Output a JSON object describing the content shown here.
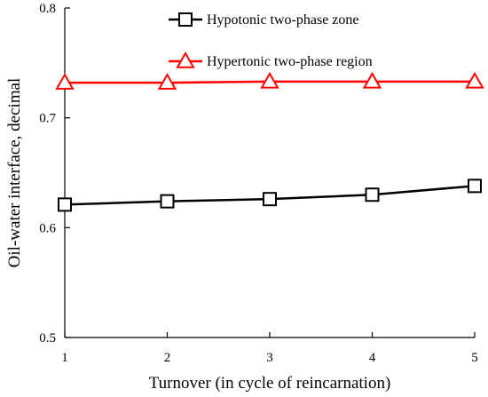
{
  "chart_data": {
    "type": "line",
    "title": "",
    "xlabel": "Turnover (in cycle of reincarnation)",
    "ylabel": "Oil-water interface, decimal",
    "x": [
      1,
      2,
      3,
      4,
      5
    ],
    "xlim": [
      1,
      5
    ],
    "ylim": [
      0.5,
      0.8
    ],
    "xticks": [
      "1",
      "2",
      "3",
      "4",
      "5"
    ],
    "yticks": [
      "0.5",
      "0.6",
      "0.7",
      "0.8"
    ],
    "grid": false,
    "legend_position": "top-center",
    "series": [
      {
        "name": "Hypotonic two-phase zone",
        "marker": "square",
        "color": "#000000",
        "values": [
          0.621,
          0.624,
          0.626,
          0.63,
          0.638
        ]
      },
      {
        "name": "Hypertonic two-phase region",
        "marker": "triangle",
        "color": "#ff0000",
        "values": [
          0.732,
          0.732,
          0.733,
          0.733,
          0.733
        ]
      }
    ]
  }
}
